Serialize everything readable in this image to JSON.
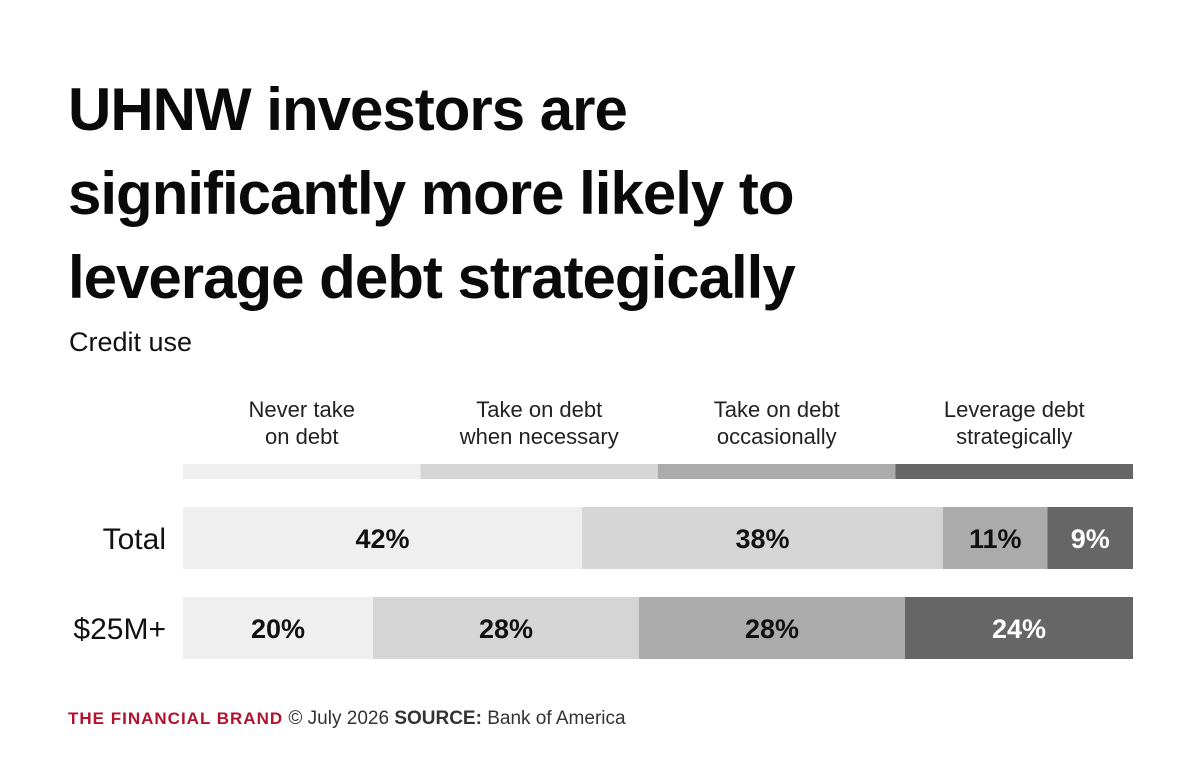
{
  "title": "UHNW investors are significantly more likely to leverage debt strategically",
  "footer": {
    "brand": "THE FINANCIAL BRAND",
    "date": "© July 2026",
    "source_label": "SOURCE:",
    "source": "Bank of America"
  },
  "colors": [
    "#efefef",
    "#d5d5d5",
    "#ababab",
    "#666666"
  ],
  "chart_data": {
    "type": "bar",
    "orientation": "horizontal",
    "stacked": true,
    "normalized": true,
    "title": "UHNW investors are significantly more likely to leverage debt strategically",
    "subtitle": "Credit use",
    "categories": [
      "Total",
      "$25M+"
    ],
    "series": [
      {
        "name": "Never take on debt",
        "values": [
          42,
          20
        ],
        "labels": [
          "42%",
          "20%"
        ]
      },
      {
        "name": "Take on debt when necessary",
        "values": [
          38,
          28
        ],
        "labels": [
          "38%",
          "28%"
        ]
      },
      {
        "name": "Take on debt occasionally",
        "values": [
          11,
          28
        ],
        "labels": [
          "11%",
          "28%"
        ]
      },
      {
        "name": "Leverage debt strategically",
        "values": [
          9,
          24
        ],
        "labels": [
          "9%",
          "24%"
        ]
      }
    ],
    "legend_lines": [
      [
        "Never take",
        "on debt"
      ],
      [
        "Take on debt",
        "when necessary"
      ],
      [
        "Take on debt",
        "occasionally"
      ],
      [
        "Leverage debt",
        "strategically"
      ]
    ],
    "legend_position": "top",
    "xlim": [
      0,
      100
    ],
    "grid": false
  }
}
